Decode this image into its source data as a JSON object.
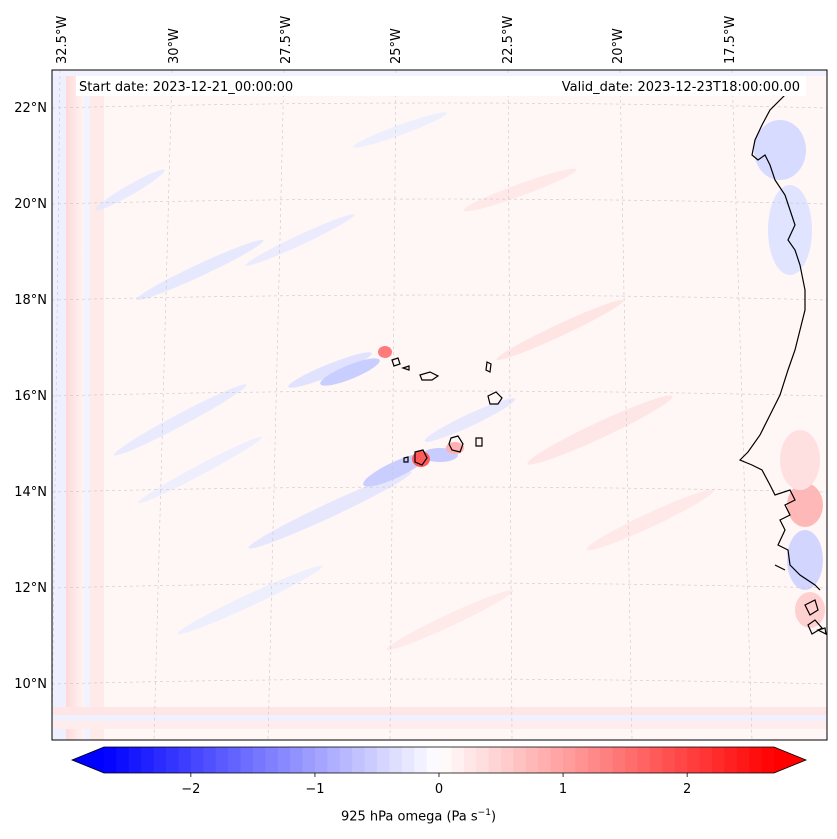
{
  "header": {
    "start_label": "Start date: 2023-12-21_00:00:00",
    "valid_label": "Valid_date: 2023-12-23T18:00:00.00"
  },
  "map": {
    "lon_ticks": [
      "32.5°W",
      "30°W",
      "27.5°W",
      "25°W",
      "22.5°W",
      "20°W",
      "17.5°W"
    ],
    "lat_ticks": [
      "22°N",
      "20°N",
      "18°N",
      "16°N",
      "14°N",
      "12°N",
      "10°N"
    ],
    "gridlines": true
  },
  "colorbar": {
    "label_main": "925 hPa omega (Pa s",
    "label_exp": "−1",
    "label_close": ")",
    "ticks": [
      "−2",
      "−1",
      "0",
      "1",
      "2"
    ],
    "tick_values": [
      -2,
      -1,
      0,
      1,
      2
    ],
    "range": [
      -2.7,
      2.7
    ],
    "colormap": "bwr",
    "low_color": "#0000ff",
    "mid_color": "#ffffff",
    "high_color": "#ff0000",
    "extend": "both"
  }
}
